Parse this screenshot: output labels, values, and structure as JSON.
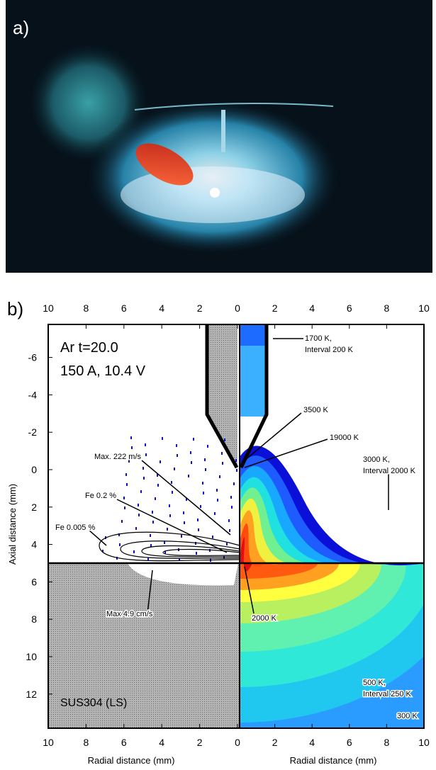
{
  "panel_a": {
    "label": "a)"
  },
  "panel_b": {
    "label": "b)",
    "top_ticks": [
      10,
      8,
      6,
      4,
      2,
      0,
      2,
      4,
      6,
      8,
      10
    ],
    "bottom_ticks": [
      10,
      8,
      6,
      4,
      2,
      0,
      2,
      4,
      6,
      8,
      10
    ],
    "y_ticks": [
      -6,
      -4,
      -2,
      0,
      2,
      4,
      6,
      8,
      10,
      12
    ],
    "y_label": "Axial distance (mm)",
    "x_labels": [
      "Radial distance (mm)",
      "Radial distance (mm)"
    ],
    "annotations": [
      "Ar  t=20.0",
      "150 A, 10.4 V",
      "1700 K,",
      "Interval 200 K",
      "3500 K",
      "19000 K",
      "3000 K,",
      "Interval 2000 K",
      "Max. 222 m/s",
      "Fe 0.2 %",
      "Fe 0.005 %",
      "Max 4.9 cm/s",
      "2000 K",
      "500 K,",
      "Interval 250 K",
      "300 K",
      "SUS304 (LS)"
    ]
  }
}
